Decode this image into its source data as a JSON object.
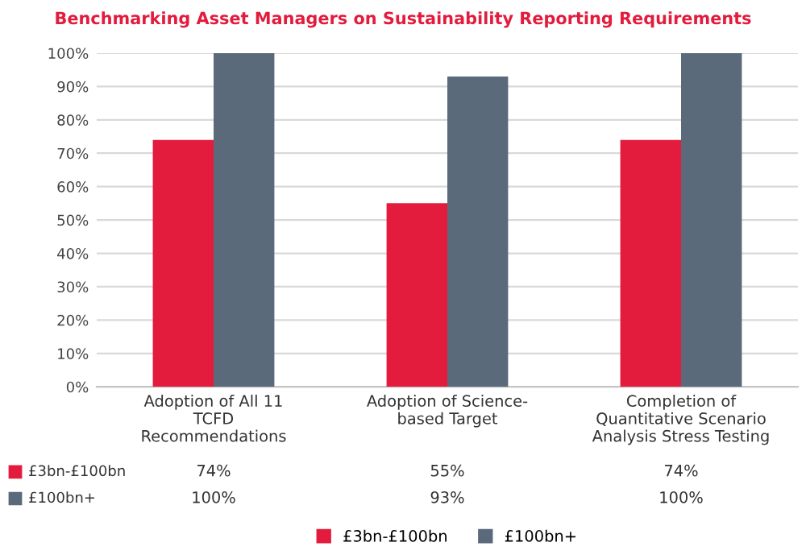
{
  "chart_data": {
    "type": "bar",
    "title": "Benchmarking Asset Managers on Sustainability Reporting Requirements",
    "categories": [
      "Adoption of All 11\nTCFD\nRecommendations",
      "Adoption of Science-\nbased Target",
      "Completion of\nQuantitative Scenario\nAnalysis Stress Testing"
    ],
    "series": [
      {
        "name": "£3bn-£100bn",
        "color": "#e31b3c",
        "values": [
          74,
          55,
          74
        ],
        "value_labels": [
          "74%",
          "55%",
          "74%"
        ]
      },
      {
        "name": "£100bn+",
        "color": "#5a6a7b",
        "values": [
          100,
          93,
          100
        ],
        "value_labels": [
          "100%",
          "93%",
          "100%"
        ]
      }
    ],
    "ylim": [
      0,
      100
    ],
    "yticks": [
      {
        "value": 0,
        "label": "0%"
      },
      {
        "value": 10,
        "label": "10%"
      },
      {
        "value": 20,
        "label": "20%"
      },
      {
        "value": 30,
        "label": "30%"
      },
      {
        "value": 40,
        "label": "40%"
      },
      {
        "value": 50,
        "label": "50%"
      },
      {
        "value": 60,
        "label": "60%"
      },
      {
        "value": 70,
        "label": "70%"
      },
      {
        "value": 80,
        "label": "80%"
      },
      {
        "value": 90,
        "label": "90%"
      },
      {
        "value": 100,
        "label": "100%"
      }
    ],
    "grid": "y",
    "legend": "bottom"
  }
}
